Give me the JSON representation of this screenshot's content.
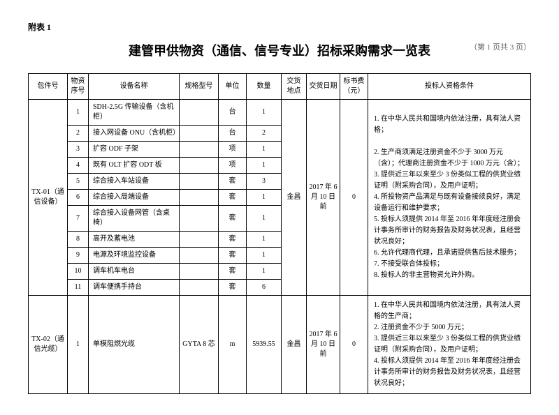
{
  "header_label": "附表 1",
  "title": "建管甲供物资（通信、信号专业）招标采购需求一览表",
  "page_info": "（第 1 页共 3 页）",
  "columns": {
    "pkg": "包件号",
    "seq": "物资序号",
    "name": "设备名称",
    "spec": "规格型号",
    "unit": "单位",
    "qty": "数量",
    "loc": "交货地点",
    "date": "交货日期",
    "fee": "标书费（元）",
    "qual": "投标人资格条件"
  },
  "group1": {
    "pkg": "TX-01（通信设备）",
    "loc": "金昌",
    "date": "2017 年 6 月 10 日前",
    "fee": "0",
    "rows": [
      {
        "seq": "1",
        "name": "SDH-2.5G 传输设备（含机柜）",
        "spec": "",
        "unit": "台",
        "qty": "1"
      },
      {
        "seq": "2",
        "name": "接入网设备 ONU（含机柜）",
        "spec": "",
        "unit": "台",
        "qty": "2"
      },
      {
        "seq": "3",
        "name": "扩容 ODF 子架",
        "spec": "",
        "unit": "项",
        "qty": "1"
      },
      {
        "seq": "4",
        "name": "既有 OLT 扩容 ODT 板",
        "spec": "",
        "unit": "项",
        "qty": "1"
      },
      {
        "seq": "5",
        "name": "综合接入车站设备",
        "spec": "",
        "unit": "套",
        "qty": "3"
      },
      {
        "seq": "6",
        "name": "综合接入局端设备",
        "spec": "",
        "unit": "套",
        "qty": "1"
      },
      {
        "seq": "7",
        "name": "综合接入设备网管（含桌椅）",
        "spec": "",
        "unit": "套",
        "qty": "1"
      },
      {
        "seq": "8",
        "name": "高开及蓄电池",
        "spec": "",
        "unit": "套",
        "qty": "1"
      },
      {
        "seq": "9",
        "name": "电源及环境监控设备",
        "spec": "",
        "unit": "套",
        "qty": "1"
      },
      {
        "seq": "10",
        "name": "调车机车电台",
        "spec": "",
        "unit": "套",
        "qty": "1"
      },
      {
        "seq": "11",
        "name": "调车便携手持台",
        "spec": "",
        "unit": "套",
        "qty": "6"
      }
    ],
    "qual": "1. 在中华人民共和国境内依法注册，具有法人资格；\n\n2. 生产商须满足注册资金不少于 3000 万元（含）；代理商注册资金不少于 1000 万元（含）；\n3. 提供近三年以来至少 3 份类似工程的供货业绩证明（附采购合同），及用户证明；\n4. 所投物资产品满足与既有设备接续良好，满足设备运行和维护要求；\n5. 投标人须提供 2014 年至 2016 年年度经注册会计事务所审计的财务报告及财务状况表，且经营状况良好；\n6. 允许代理商代理，且承诺提供售后技术服务；\n7. 不接受联合体投标；\n8. 投标人的非主营物资允许外购。"
  },
  "group2": {
    "pkg": "TX-02（通信光缆）",
    "loc": "金昌",
    "date": "2017 年 6 月 10 日前",
    "fee": "0",
    "rows": [
      {
        "seq": "1",
        "name": "单模阻燃光缆",
        "spec": "GYTA 8 芯",
        "unit": "m",
        "qty": "5939.55"
      }
    ],
    "qual": "1. 在中华人民共和国境内依法注册，具有法人资格的生产商；\n2. 注册资金不少于 5000 万元；\n3. 提供近三年以来至少 3 份类似工程的供货业绩证明（附采购合同），及用户证明；\n4. 投标人须提供 2014 年至 2016 年年度经注册会计事务所审计的财务报告及财务状况表，且经营状况良好；"
  }
}
